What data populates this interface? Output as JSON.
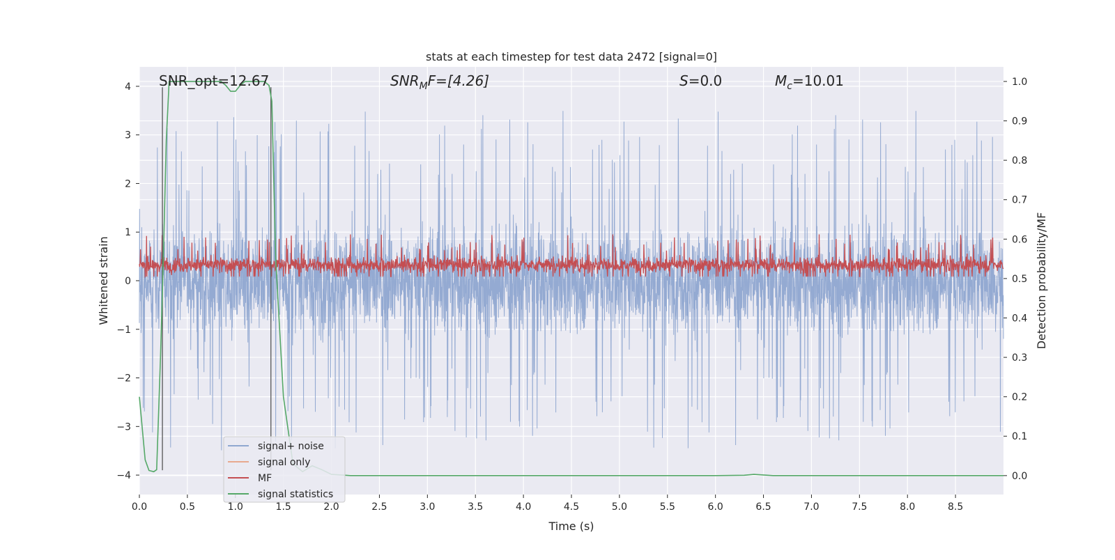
{
  "chart_data": {
    "type": "line",
    "title": "stats at each timestep for test data 2472 [signal=0]",
    "xlabel": "Time (s)",
    "ylabel_left": "Whitened strain",
    "ylabel_right": "Detection probability/MF",
    "xlim": [
      0.0,
      9.0
    ],
    "ylim_left": [
      -4.4,
      4.4
    ],
    "ylim_right": [
      -0.048,
      1.037
    ],
    "x_ticks": [
      "0.0",
      "0.5",
      "1.0",
      "1.5",
      "2.0",
      "2.5",
      "3.0",
      "3.5",
      "4.0",
      "4.5",
      "5.0",
      "5.5",
      "6.0",
      "6.5",
      "7.0",
      "7.5",
      "8.0",
      "8.5"
    ],
    "y_ticks_left": [
      "−4",
      "−3",
      "−2",
      "−1",
      "0",
      "1",
      "2",
      "3",
      "4"
    ],
    "y_ticks_right": [
      "0.0",
      "0.1",
      "0.2",
      "0.3",
      "0.4",
      "0.5",
      "0.6",
      "0.7",
      "0.8",
      "0.9",
      "1.0"
    ],
    "grid": true,
    "legend_position": "lower-left",
    "annotations": {
      "snr_opt": "SNR_opt=12.67",
      "snr_mf_name": "SNR",
      "snr_mf_sub": "M",
      "snr_mf_rest": "F=[4.26]",
      "s_name": "S",
      "s_rest": "=0.0",
      "mc_name": "M",
      "mc_sub": "c",
      "mc_rest": "=10.01"
    },
    "vertical_markers": [
      0.24,
      1.37
    ],
    "series": [
      {
        "name": "signal+ noise",
        "color": "#8fa7d0",
        "axis": "left",
        "noise_band": {
          "core_min": -1.5,
          "core_max": 1.6,
          "peak_max": 3.8,
          "trough_min": -3.9
        }
      },
      {
        "name": "signal only",
        "color": "#e8a98f",
        "axis": "left",
        "values": []
      },
      {
        "name": "MF",
        "color": "#c44e52",
        "axis": "right",
        "noise_band": {
          "core_min": 0.5,
          "core_max": 0.58,
          "peak_max": 0.62
        }
      },
      {
        "name": "signal statistics",
        "color": "#55a868",
        "axis": "right",
        "x": [
          0.0,
          0.06,
          0.1,
          0.15,
          0.18,
          0.22,
          0.25,
          0.28,
          0.31,
          0.4,
          0.6,
          0.85,
          0.9,
          0.95,
          1.0,
          1.05,
          1.1,
          1.2,
          1.3,
          1.35,
          1.38,
          1.42,
          1.5,
          1.6,
          1.7,
          1.8,
          1.9,
          2.0,
          2.2,
          3.0,
          4.0,
          5.0,
          6.0,
          6.3,
          6.4,
          6.6,
          7.0,
          8.0,
          9.0
        ],
        "y": [
          0.2,
          0.04,
          0.013,
          0.01,
          0.015,
          0.3,
          0.55,
          0.85,
          1.0,
          1.0,
          1.0,
          1.0,
          0.99,
          0.975,
          0.975,
          0.99,
          1.0,
          1.0,
          1.0,
          0.99,
          0.95,
          0.55,
          0.2,
          0.03,
          0.01,
          0.025,
          0.015,
          0.003,
          0.0,
          0.0,
          0.0,
          0.0,
          0.0,
          0.001,
          0.003,
          0.0,
          0.0,
          0.0,
          0.0
        ]
      }
    ]
  }
}
